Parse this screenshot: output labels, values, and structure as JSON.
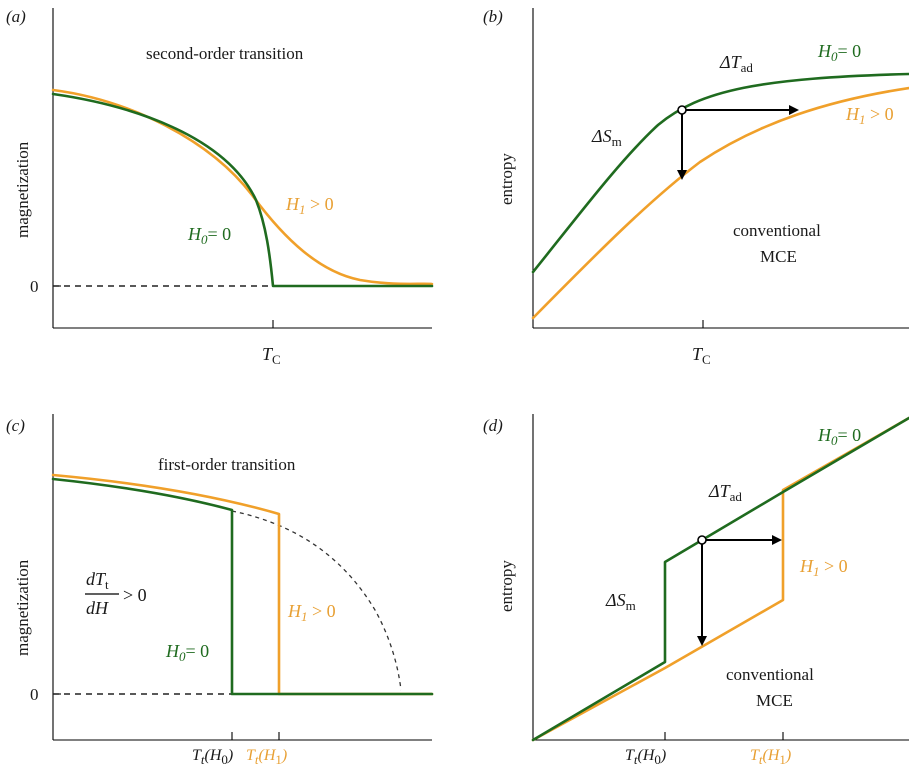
{
  "colors": {
    "green": "#1f6b1f",
    "orange": "#f0a02a",
    "axis": "#000000"
  },
  "panels": {
    "a": {
      "tag": "(a)",
      "title": "second-order transition",
      "ylabel": "magnetization",
      "zero_tick": "0",
      "xtick_main": "T",
      "xtick_sub": "C",
      "green_label_main": "H",
      "green_label_sub": "0",
      "green_label_rest": "= 0",
      "orange_label_main": "H",
      "orange_label_sub": "1",
      "orange_label_rest": " > 0"
    },
    "b": {
      "tag": "(b)",
      "ylabel": "entropy",
      "xtick_main": "T",
      "xtick_sub": "C",
      "green_label_main": "H",
      "green_label_sub": "0",
      "green_label_rest": "= 0",
      "orange_label_main": "H",
      "orange_label_sub": "1",
      "orange_label_rest": " > 0",
      "dT_main": "ΔT",
      "dT_sub": "ad",
      "dS_main": "ΔS",
      "dS_sub": "m",
      "note_line1": "conventional",
      "note_line2": "MCE"
    },
    "c": {
      "tag": "(c)",
      "title": "first-order transition",
      "ylabel": "magnetization",
      "zero_tick": "0",
      "frac_num_main": "dT",
      "frac_num_sub": "t",
      "frac_den": "dH",
      "frac_rest": "> 0",
      "green_label_main": "H",
      "green_label_sub": "0",
      "green_label_rest": "= 0",
      "orange_label_main": "H",
      "orange_label_sub": "1",
      "orange_label_rest": " > 0",
      "xtick1_main": "T",
      "xtick1_sub": "t",
      "xtick1_arg_main": "(H",
      "xtick1_arg_sub": "0",
      "xtick1_arg_close": ")",
      "xtick2_main": "T",
      "xtick2_sub": "t",
      "xtick2_arg_main": "(H",
      "xtick2_arg_sub": "1",
      "xtick2_arg_close": ")"
    },
    "d": {
      "tag": "(d)",
      "ylabel": "entropy",
      "green_label_main": "H",
      "green_label_sub": "0",
      "green_label_rest": "= 0",
      "orange_label_main": "H",
      "orange_label_sub": "1",
      "orange_label_rest": " > 0",
      "dT_main": "ΔT",
      "dT_sub": "ad",
      "dS_main": "ΔS",
      "dS_sub": "m",
      "note_line1": "conventional",
      "note_line2": "MCE",
      "xtick1_main": "T",
      "xtick1_sub": "t",
      "xtick1_arg_main": "(H",
      "xtick1_arg_sub": "0",
      "xtick1_arg_close": ")",
      "xtick2_main": "T",
      "xtick2_sub": "t",
      "xtick2_arg_main": "(H",
      "xtick2_arg_sub": "1",
      "xtick2_arg_close": ")"
    }
  }
}
